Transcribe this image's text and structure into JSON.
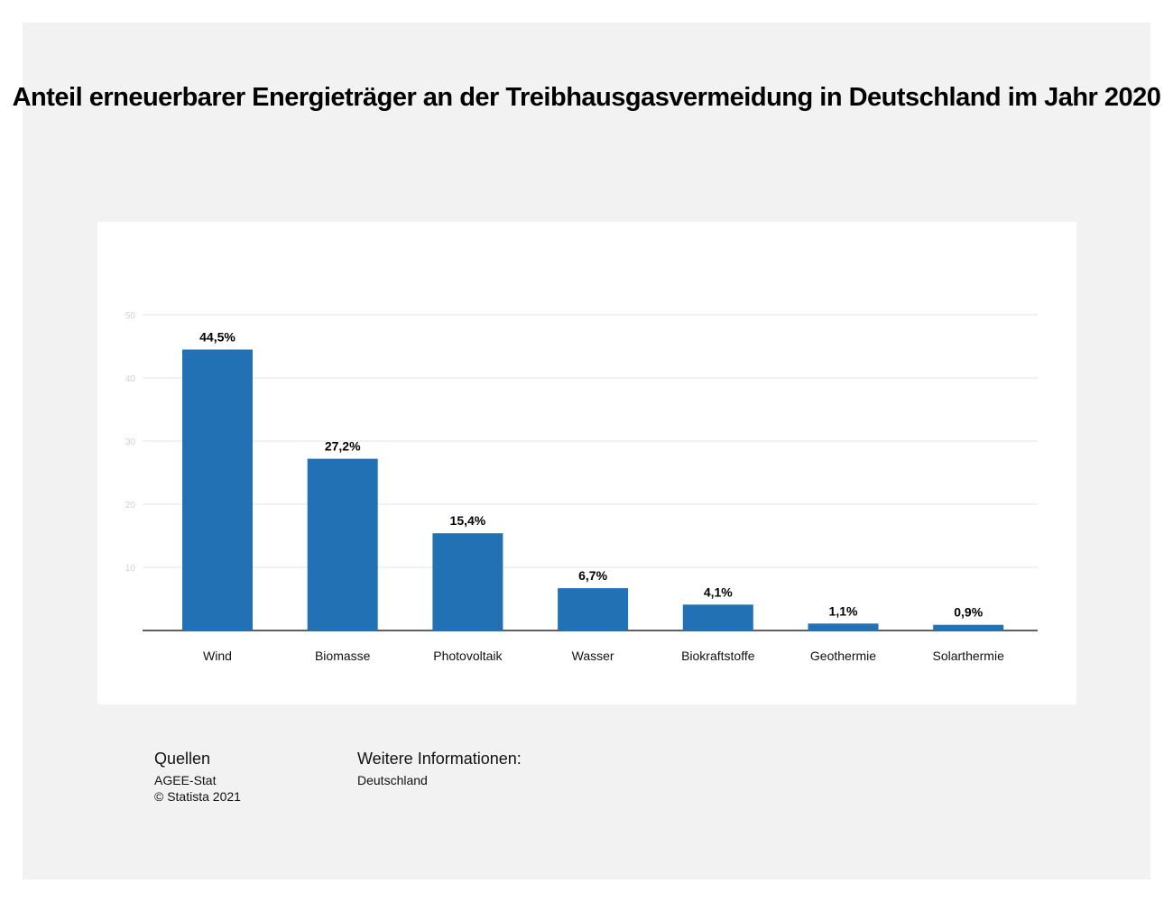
{
  "chart_data": {
    "type": "bar",
    "title": "Anteil erneuerbarer Energieträger an der Treibhausgasvermeidung in Deutschland im Jahr 2020",
    "categories": [
      "Wind",
      "Biomasse",
      "Photovoltaik",
      "Wasser",
      "Biokraftstoffe",
      "Geothermie",
      "Solarthermie"
    ],
    "values": [
      44.5,
      27.2,
      15.4,
      6.7,
      4.1,
      1.1,
      0.9
    ],
    "data_labels": [
      "44,5%",
      "27,2%",
      "15,4%",
      "6,7%",
      "4,1%",
      "1,1%",
      "0,9%"
    ],
    "yticks": [
      "10",
      "20",
      "30",
      "40",
      "50"
    ],
    "ylim": [
      0,
      50
    ],
    "grid": true,
    "bar_color": "#2271b5",
    "xlabel": "",
    "ylabel": ""
  },
  "footer": {
    "sources_heading": "Quellen",
    "sources": [
      "AGEE-Stat",
      "© Statista 2021"
    ],
    "info_heading": "Weitere Informationen:",
    "info": "Deutschland"
  }
}
